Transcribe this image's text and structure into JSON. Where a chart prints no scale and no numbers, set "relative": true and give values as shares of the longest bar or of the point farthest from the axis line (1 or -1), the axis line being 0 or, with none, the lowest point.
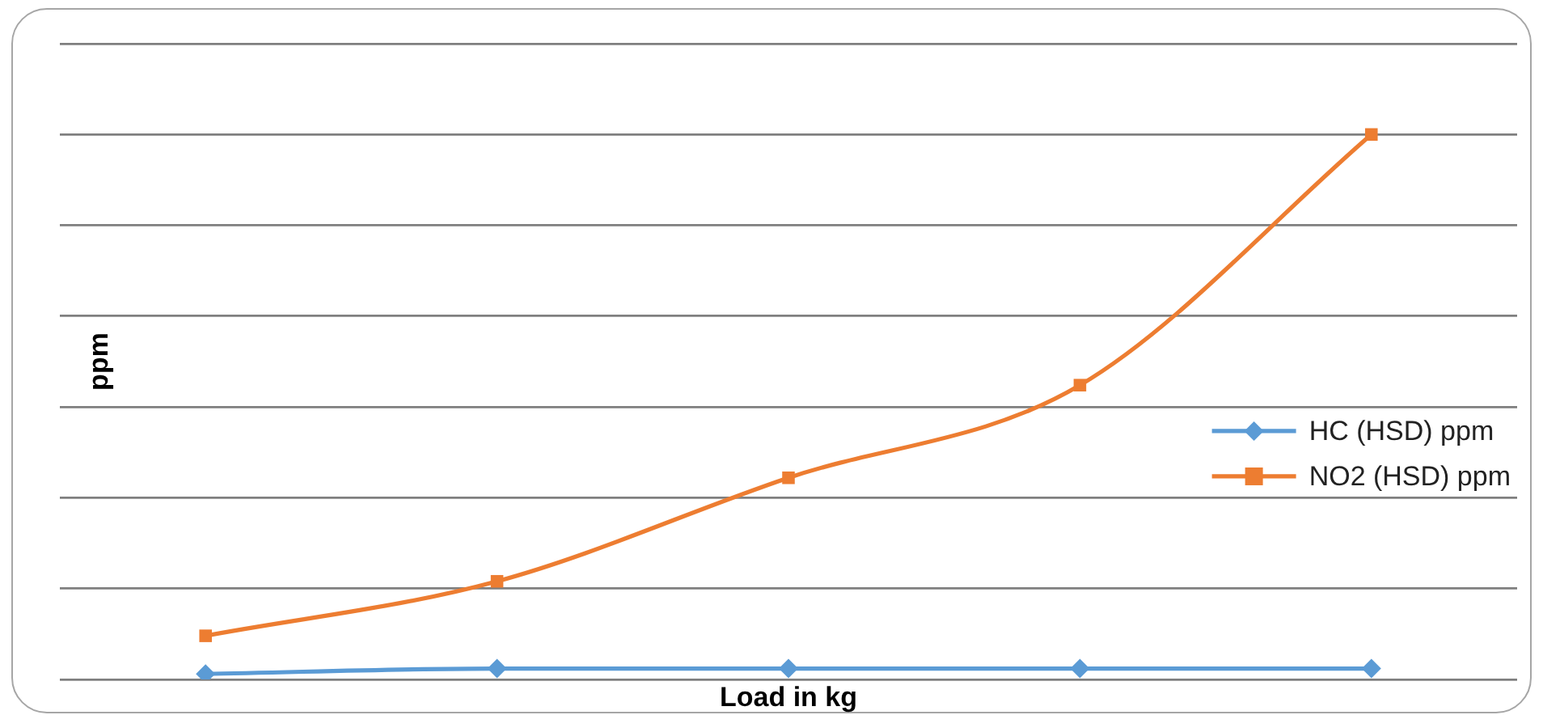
{
  "chart_data": {
    "type": "line",
    "xlabel": "Load in kg",
    "ylabel": "ppm",
    "categories": [
      null,
      null,
      null,
      null,
      null
    ],
    "relative": true,
    "series": [
      {
        "name": "HC (HSD) ppm",
        "color": "#5b9bd5",
        "marker": "diamond",
        "values": [
          0.01,
          0.02,
          0.02,
          0.02,
          0.02
        ]
      },
      {
        "name": "NO2 (HSD) ppm",
        "color": "#ed7d31",
        "marker": "square",
        "values": [
          0.08,
          0.18,
          0.37,
          0.54,
          1
        ]
      }
    ],
    "grid": "y",
    "legend": "right"
  }
}
